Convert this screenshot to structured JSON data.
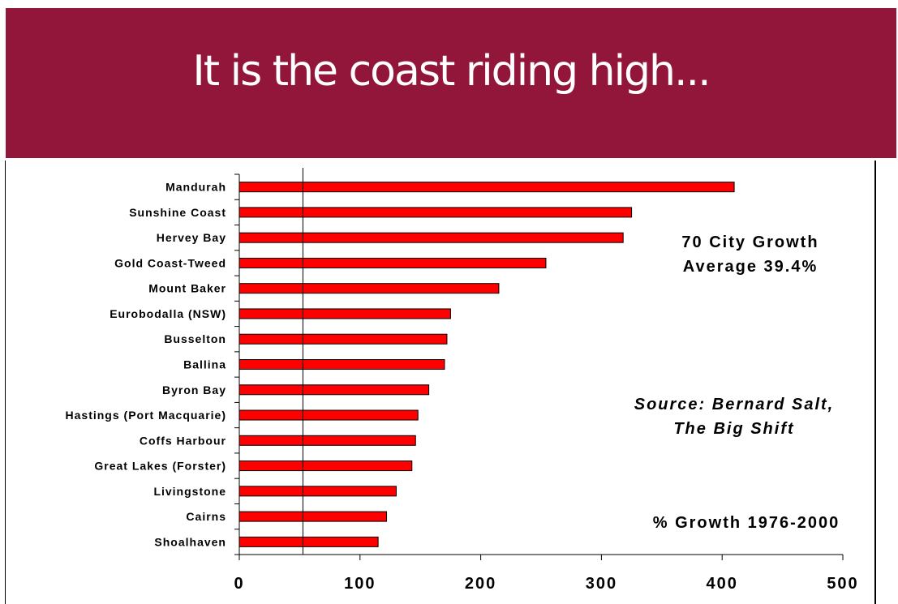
{
  "slide": {
    "title": "It is the coast riding high...",
    "banner_color": "#921639"
  },
  "annotations": {
    "average_line1": "70 City Growth",
    "average_line2": "Average 39.4%",
    "source_line1": "Source: Bernard Salt,",
    "source_line2": "The Big Shift",
    "period": "% Growth 1976-2000"
  },
  "chart_data": {
    "type": "bar",
    "orientation": "horizontal",
    "categories": [
      "Mandurah",
      "Sunshine Coast",
      "Hervey Bay",
      "Gold Coast-Tweed",
      "Mount Baker",
      "Eurobodalla (NSW)",
      "Busselton",
      "Ballina",
      "Byron Bay",
      "Hastings (Port Macquarie)",
      "Coffs Harbour",
      "Great Lakes (Forster)",
      "Livingstone",
      "Cairns",
      "Shoalhaven"
    ],
    "values": [
      410,
      325,
      318,
      254,
      215,
      175,
      172,
      170,
      157,
      148,
      146,
      143,
      130,
      122,
      115
    ],
    "xlim": [
      0,
      500
    ],
    "xticks": [
      0,
      100,
      200,
      300,
      400,
      500
    ],
    "reference_line": 52.7,
    "bar_color": "#ff0000",
    "grid": false
  }
}
